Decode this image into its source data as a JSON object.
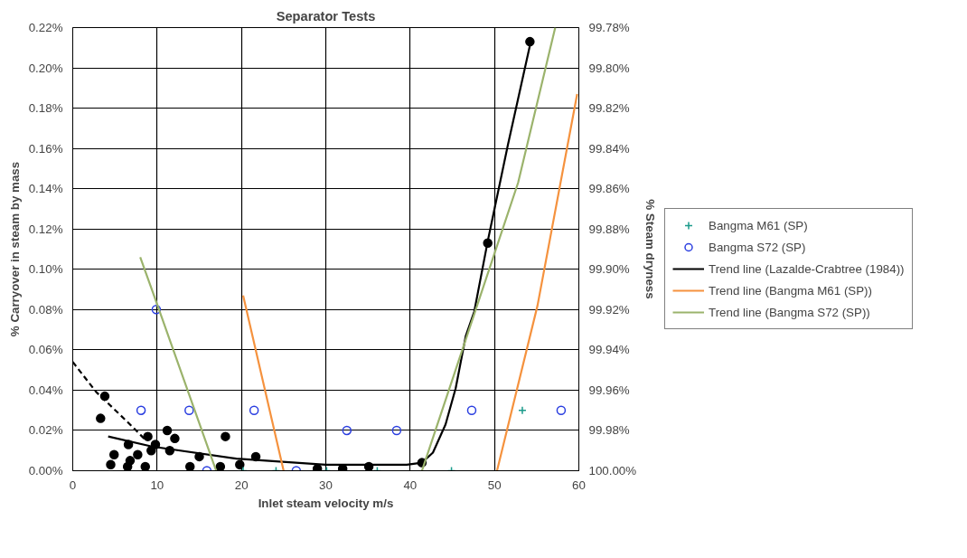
{
  "chart_data": {
    "type": "scatter",
    "title": "Separator Tests",
    "xlabel": "Inlet steam velocity m/s",
    "ylabel": "% Carryover in steam by mass",
    "y2label": "% Steam dryness",
    "xlim": [
      0,
      60
    ],
    "xticks": [
      0,
      10,
      20,
      30,
      40,
      50,
      60
    ],
    "ylim": [
      0,
      0.22
    ],
    "yticks": [
      {
        "value": 0,
        "label": "0.00%"
      },
      {
        "value": 0.02,
        "label": "0.02%"
      },
      {
        "value": 0.04,
        "label": "0.04%"
      },
      {
        "value": 0.06,
        "label": "0.06%"
      },
      {
        "value": 0.08,
        "label": "0.08%"
      },
      {
        "value": 0.1,
        "label": "0.10%"
      },
      {
        "value": 0.12,
        "label": "0.12%"
      },
      {
        "value": 0.14,
        "label": "0.14%"
      },
      {
        "value": 0.16,
        "label": "0.16%"
      },
      {
        "value": 0.18,
        "label": "0.18%"
      },
      {
        "value": 0.2,
        "label": "0.20%"
      },
      {
        "value": 0.22,
        "label": "0.22%"
      }
    ],
    "y2lim": [
      100,
      99.78
    ],
    "y2ticks": [
      {
        "value": 100,
        "label": "100.00%"
      },
      {
        "value": 99.98,
        "label": "99.98%"
      },
      {
        "value": 99.96,
        "label": "99.96%"
      },
      {
        "value": 99.94,
        "label": "99.94%"
      },
      {
        "value": 99.92,
        "label": "99.92%"
      },
      {
        "value": 99.9,
        "label": "99.90%"
      },
      {
        "value": 99.88,
        "label": "99.88%"
      },
      {
        "value": 99.86,
        "label": "99.86%"
      },
      {
        "value": 99.84,
        "label": "99.84%"
      },
      {
        "value": 99.82,
        "label": "99.82%"
      },
      {
        "value": 99.8,
        "label": "99.80%"
      },
      {
        "value": 99.78,
        "label": "99.78%"
      }
    ],
    "grid": true,
    "legend": "right",
    "series": [
      {
        "marker": "circle",
        "color": "#000000",
        "x": [
          3.8,
          3.3,
          11.2,
          12.1,
          18.1,
          8.9,
          9.8,
          9.3,
          6.6,
          7.7,
          4.9,
          4.5,
          6.8,
          6.5,
          8.6,
          11.5,
          15.0,
          13.9,
          17.5,
          19.8,
          21.7,
          29.0,
          32.0,
          35.1,
          41.4,
          49.2,
          54.2
        ],
        "values": [
          0.037,
          0.026,
          0.02,
          0.016,
          0.017,
          0.017,
          0.013,
          0.01,
          0.013,
          0.008,
          0.008,
          0.003,
          0.005,
          0.002,
          0.002,
          0.01,
          0.007,
          0.002,
          0.002,
          0.003,
          0.007,
          0.001,
          0.001,
          0.002,
          0.004,
          0.113,
          0.213
        ]
      },
      {
        "type": "line",
        "line_style": "dashed",
        "color": "#000000",
        "x": [
          0,
          2.8,
          6.3,
          8.7
        ],
        "values": [
          0.054,
          0.039,
          0.025,
          0.015
        ]
      },
      {
        "name": "Bangma M61 (SP)",
        "marker": "cross",
        "color": "#1a9a8a",
        "x": [
          20.2,
          24.1,
          30.1,
          36.1,
          44.9,
          53.3
        ],
        "values": [
          0,
          0,
          0,
          0,
          0,
          0.03
        ]
      },
      {
        "name": "Bangma S72 (SP)",
        "marker": "circle",
        "color": "#2a3ee0",
        "x": [
          8.1,
          9.9,
          13.8,
          21.5,
          15.9,
          26.5,
          32.5,
          38.4,
          47.3,
          57.9
        ],
        "values": [
          0.03,
          0.08,
          0.03,
          0.03,
          0,
          0,
          0.02,
          0.02,
          0.03,
          0.03
        ]
      },
      {
        "name": "Trend line (Lazalde-Crabtree (1984))",
        "type": "line",
        "color": "#000000",
        "x": [
          4.2,
          9.4,
          19.4,
          30,
          39.6,
          41.4,
          42.7,
          44.2,
          45.4,
          46.6,
          47.6,
          49.2,
          51.6,
          54.3
        ],
        "values": [
          0.017,
          0.012,
          0.006,
          0.003,
          0.003,
          0.004,
          0.009,
          0.023,
          0.041,
          0.067,
          0.079,
          0.114,
          0.162,
          0.213
        ]
      },
      {
        "name": "Trend line (Bangma M61 (SP))",
        "type": "line",
        "color": "#f5923e",
        "x": [
          20.2,
          25.0,
          null,
          50.3,
          55.1,
          59.8
        ],
        "values": [
          0.087,
          0,
          null,
          0,
          0.082,
          0.187
        ]
      },
      {
        "name": "Trend line (Bangma S72 (SP))",
        "type": "line",
        "color": "#9bb36c",
        "x": [
          8.0,
          9.8,
          17.0,
          null,
          41.4,
          52.8,
          57.2
        ],
        "values": [
          0.106,
          0.085,
          0,
          null,
          0,
          0.143,
          0.22
        ]
      }
    ]
  }
}
